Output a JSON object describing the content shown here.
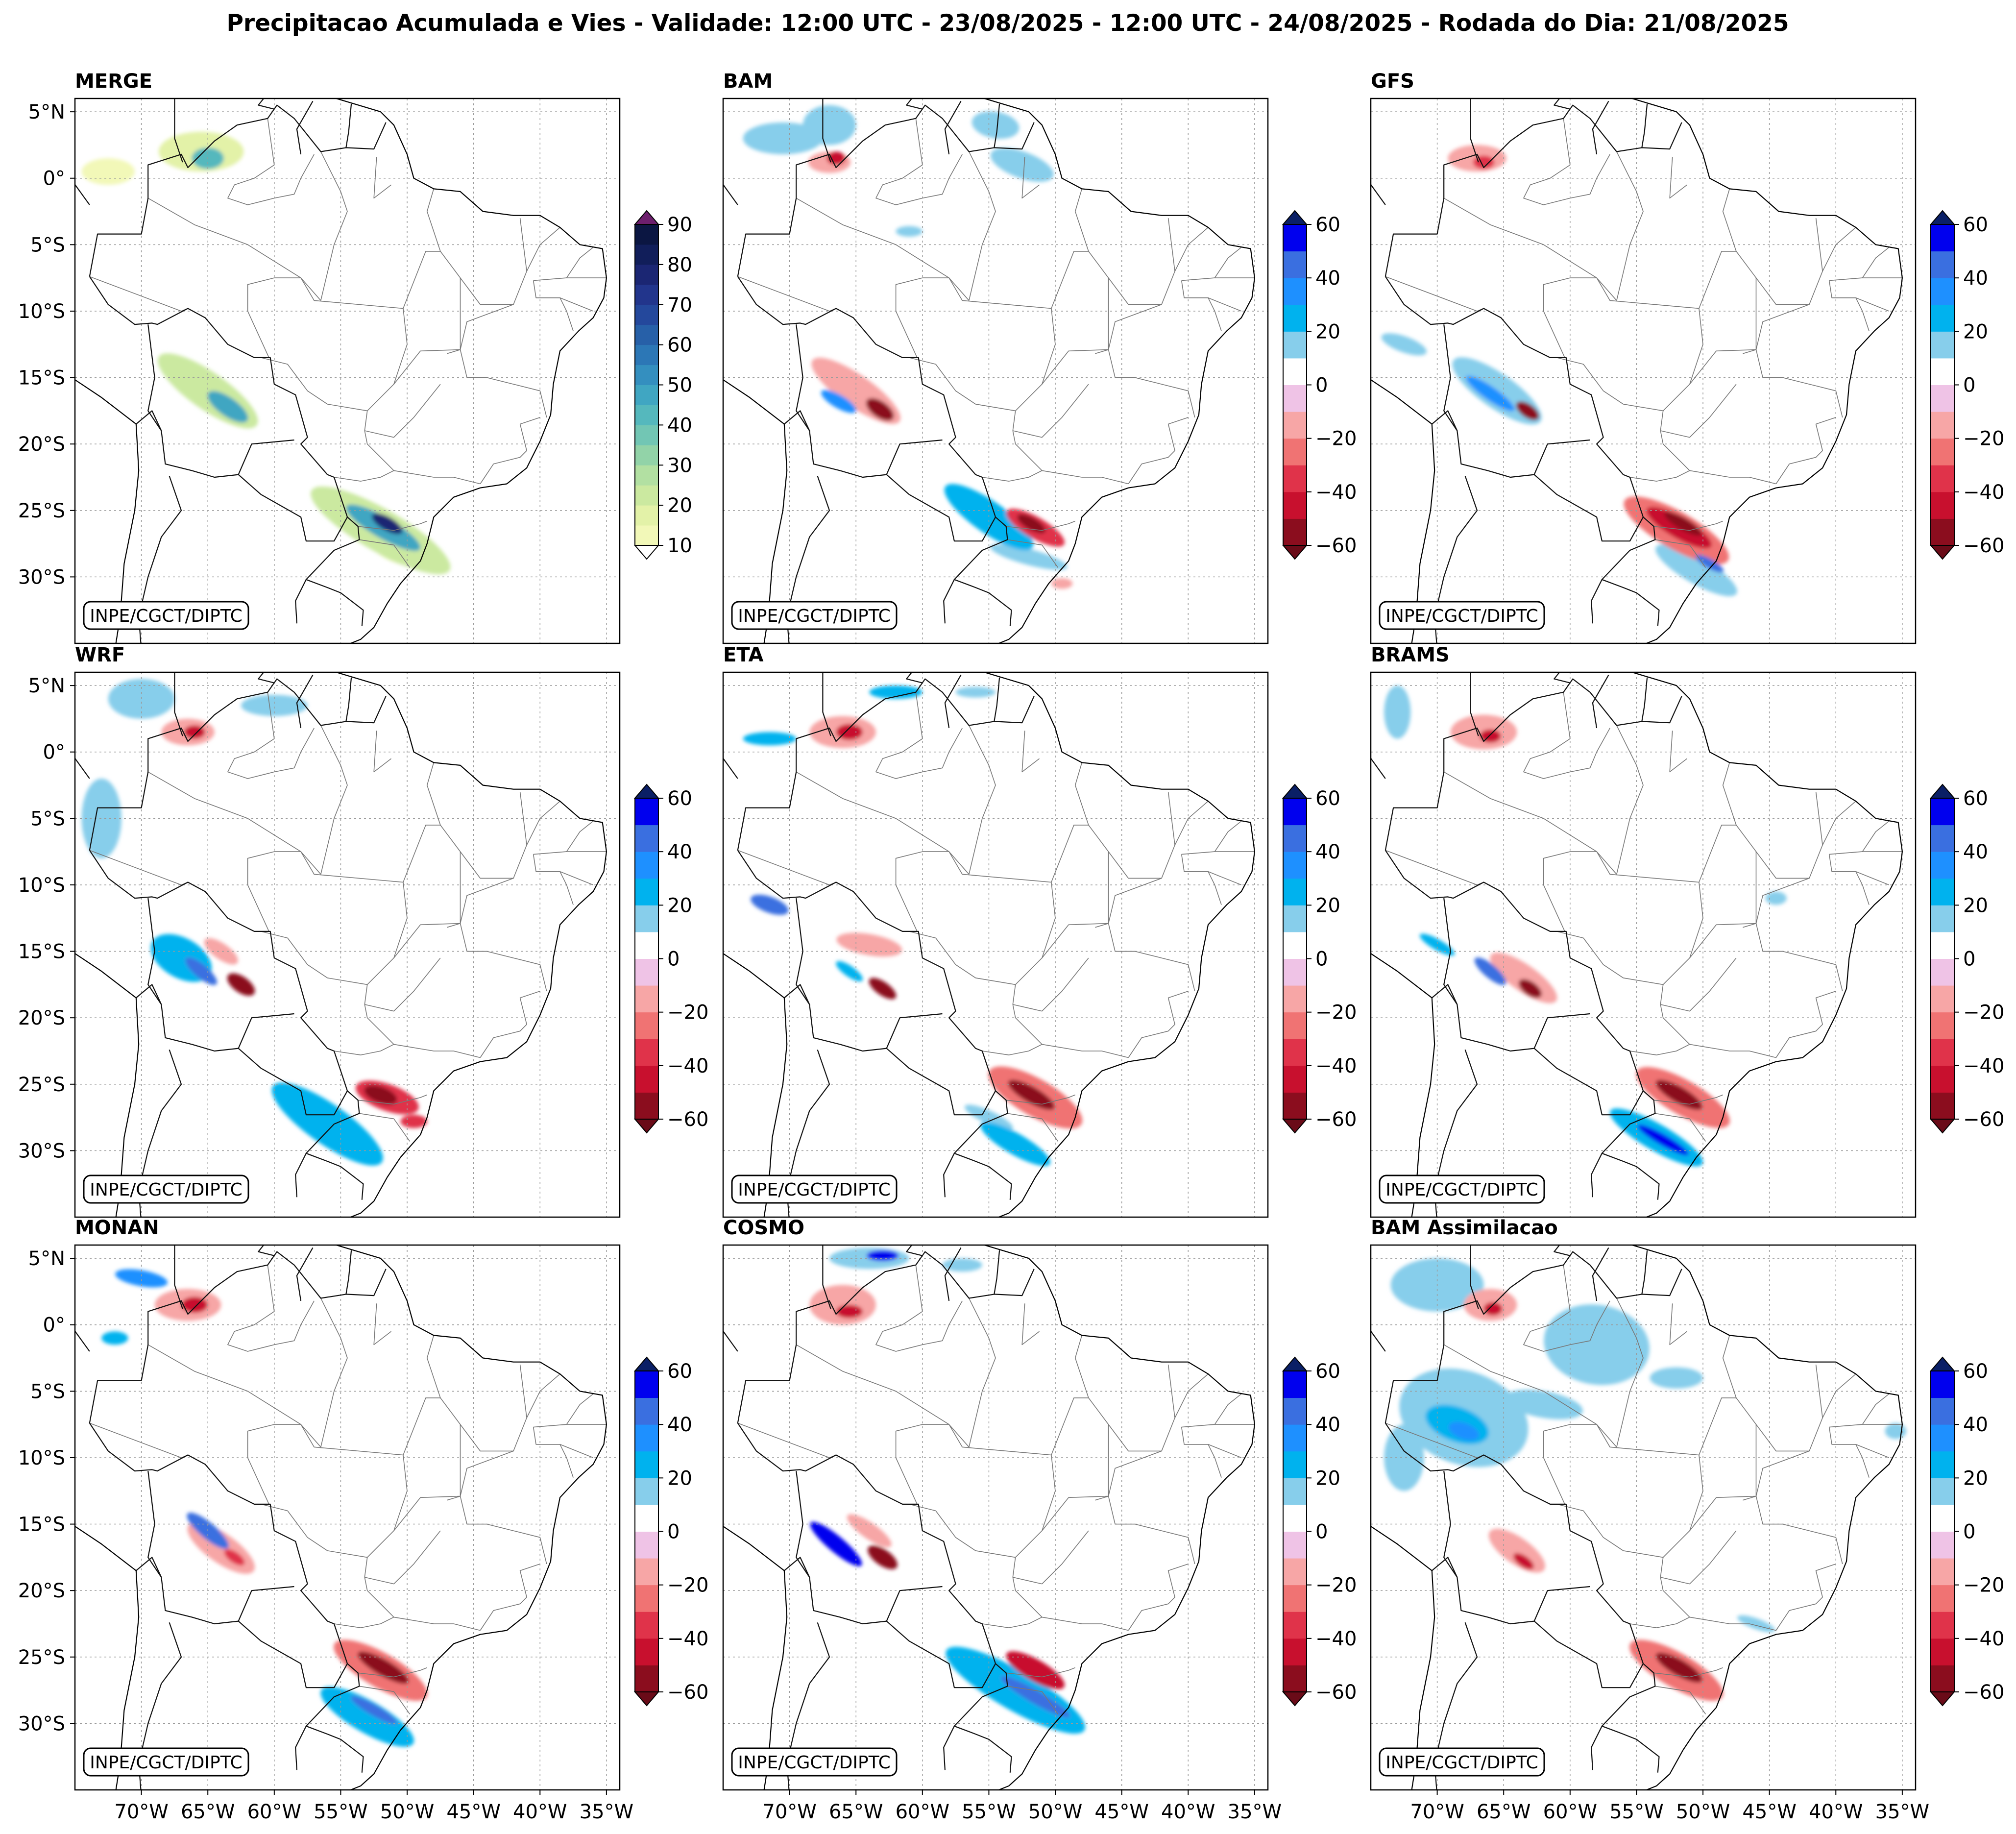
{
  "title": "Precipitacao Acumulada e Vies - Validade: 12:00 UTC - 23/08/2025 - 12:00 UTC - 24/08/2025 - Rodada do Dia: 21/08/2025",
  "credit": "INPE/CGCT/DIPTC",
  "lat_labels": [
    "5°N",
    "0°",
    "5°S",
    "10°S",
    "15°S",
    "20°S",
    "25°S",
    "30°S"
  ],
  "lon_labels": [
    "70°W",
    "65°W",
    "60°W",
    "55°W",
    "50°W",
    "45°W",
    "40°W",
    "35°W"
  ],
  "colorbars": {
    "precip": {
      "tick_labels": [
        "90",
        "80",
        "70",
        "60",
        "50",
        "40",
        "30",
        "20",
        "10"
      ],
      "levels": [
        10,
        15,
        20,
        25,
        30,
        35,
        40,
        45,
        50,
        55,
        60,
        65,
        70,
        75,
        80,
        85,
        90
      ],
      "colors": [
        "#f2f8b8",
        "#e3f2a8",
        "#cbe9a0",
        "#b2e0a2",
        "#92d3a8",
        "#72c6b4",
        "#55b8bd",
        "#40a6c2",
        "#348fbf",
        "#2c77b6",
        "#2760a8",
        "#24489c",
        "#22358c",
        "#1b2673",
        "#111e5a",
        "#0b1642"
      ],
      "over_color": "#6d1f6d",
      "under_color": "#ffffff"
    },
    "bias": {
      "tick_labels": [
        "60",
        "40",
        "20",
        "0",
        "-20",
        "-40",
        "-60"
      ],
      "levels": [
        -60,
        -50,
        -40,
        -30,
        -20,
        -10,
        0,
        10,
        20,
        30,
        40,
        50,
        60
      ],
      "colors": [
        "#8b0d1e",
        "#c8102e",
        "#e0334a",
        "#f07373",
        "#f7a6a6",
        "#efc3e6",
        "#ffffff",
        "#87ceeb",
        "#00b2ee",
        "#1e90ff",
        "#3a6fe0",
        "#0000ee"
      ],
      "over_color": "#0a1f66",
      "under_color": "#6a0b18"
    }
  },
  "panels": [
    {
      "name": "MERGE",
      "variable": "precip",
      "blobs": [
        {
          "lon": -65.5,
          "lat": 2.0,
          "a": 3.2,
          "b": 1.5,
          "rot": 0,
          "v": 18
        },
        {
          "lon": -65.0,
          "lat": 1.5,
          "a": 1.2,
          "b": 0.8,
          "rot": 0,
          "v": 42
        },
        {
          "lon": -72.5,
          "lat": 0.5,
          "a": 2.0,
          "b": 1.0,
          "rot": 0,
          "v": 13
        },
        {
          "lon": -65.0,
          "lat": -16.0,
          "a": 4.5,
          "b": 1.4,
          "rot": -35,
          "v": 20
        },
        {
          "lon": -63.5,
          "lat": -17.2,
          "a": 1.8,
          "b": 0.7,
          "rot": -35,
          "v": 48
        },
        {
          "lon": -52.0,
          "lat": -26.5,
          "a": 6.0,
          "b": 1.6,
          "rot": -30,
          "v": 22
        },
        {
          "lon": -51.8,
          "lat": -26.3,
          "a": 3.2,
          "b": 0.8,
          "rot": -30,
          "v": 45
        },
        {
          "lon": -51.5,
          "lat": -26.0,
          "a": 1.3,
          "b": 0.5,
          "rot": -30,
          "v": 78
        },
        {
          "lon": -50.5,
          "lat": -28.0,
          "a": 2.5,
          "b": 1.0,
          "rot": -20,
          "v": 15
        }
      ]
    },
    {
      "name": "BAM",
      "variable": "bias",
      "blobs": [
        {
          "lon": -70.5,
          "lat": 3.0,
          "a": 3.0,
          "b": 1.2,
          "rot": 0,
          "v": 12
        },
        {
          "lon": -67.0,
          "lat": 4.0,
          "a": 2.0,
          "b": 1.5,
          "rot": 0,
          "v": 12
        },
        {
          "lon": -67.0,
          "lat": 1.2,
          "a": 1.6,
          "b": 0.8,
          "rot": 0,
          "v": -18
        },
        {
          "lon": -66.5,
          "lat": 1.5,
          "a": 0.7,
          "b": 0.5,
          "rot": 0,
          "v": -42
        },
        {
          "lon": -54.5,
          "lat": 4.0,
          "a": 1.8,
          "b": 1.0,
          "rot": -10,
          "v": 12
        },
        {
          "lon": -52.5,
          "lat": 1.0,
          "a": 2.5,
          "b": 1.0,
          "rot": -20,
          "v": 12
        },
        {
          "lon": -61.0,
          "lat": -4.0,
          "a": 1.0,
          "b": 0.4,
          "rot": 0,
          "v": 12
        },
        {
          "lon": -65.0,
          "lat": -16.0,
          "a": 4.0,
          "b": 1.2,
          "rot": -35,
          "v": -15
        },
        {
          "lon": -63.2,
          "lat": -17.4,
          "a": 1.2,
          "b": 0.6,
          "rot": -35,
          "v": -55
        },
        {
          "lon": -66.3,
          "lat": -16.8,
          "a": 1.5,
          "b": 0.5,
          "rot": -30,
          "v": 38
        },
        {
          "lon": -55.0,
          "lat": -25.5,
          "a": 4.0,
          "b": 1.2,
          "rot": -35,
          "v": 22
        },
        {
          "lon": -51.5,
          "lat": -26.3,
          "a": 2.5,
          "b": 0.8,
          "rot": -30,
          "v": -35
        },
        {
          "lon": -51.8,
          "lat": -26.0,
          "a": 1.2,
          "b": 0.45,
          "rot": -30,
          "v": -58
        },
        {
          "lon": -52.0,
          "lat": -28.5,
          "a": 3.0,
          "b": 0.6,
          "rot": -15,
          "v": 12
        },
        {
          "lon": -49.5,
          "lat": -30.5,
          "a": 0.8,
          "b": 0.4,
          "rot": 0,
          "v": -18
        }
      ]
    },
    {
      "name": "GFS",
      "variable": "bias",
      "blobs": [
        {
          "lon": -67.0,
          "lat": 1.5,
          "a": 2.2,
          "b": 1.0,
          "rot": 0,
          "v": -15
        },
        {
          "lon": -66.5,
          "lat": 1.2,
          "a": 0.8,
          "b": 0.5,
          "rot": 0,
          "v": -40
        },
        {
          "lon": -72.5,
          "lat": -12.5,
          "a": 1.8,
          "b": 0.6,
          "rot": -20,
          "v": 12
        },
        {
          "lon": -65.5,
          "lat": -16.0,
          "a": 4.0,
          "b": 1.3,
          "rot": -35,
          "v": 15
        },
        {
          "lon": -66.0,
          "lat": -16.2,
          "a": 2.2,
          "b": 0.5,
          "rot": -35,
          "v": 38
        },
        {
          "lon": -63.2,
          "lat": -17.5,
          "a": 1.0,
          "b": 0.5,
          "rot": -35,
          "v": -55
        },
        {
          "lon": -52.0,
          "lat": -26.5,
          "a": 4.5,
          "b": 1.4,
          "rot": -30,
          "v": -22
        },
        {
          "lon": -51.8,
          "lat": -26.3,
          "a": 2.8,
          "b": 0.8,
          "rot": -30,
          "v": -48
        },
        {
          "lon": -51.5,
          "lat": -26.0,
          "a": 1.6,
          "b": 0.45,
          "rot": -30,
          "v": -58
        },
        {
          "lon": -50.5,
          "lat": -29.5,
          "a": 3.5,
          "b": 1.0,
          "rot": -30,
          "v": 12
        },
        {
          "lon": -49.5,
          "lat": -29.0,
          "a": 1.2,
          "b": 0.35,
          "rot": -30,
          "v": 40
        }
      ]
    },
    {
      "name": "WRF",
      "variable": "bias",
      "blobs": [
        {
          "lon": -66.5,
          "lat": 1.5,
          "a": 2.0,
          "b": 1.0,
          "rot": 0,
          "v": -18
        },
        {
          "lon": -66.0,
          "lat": 1.5,
          "a": 0.8,
          "b": 0.5,
          "rot": 0,
          "v": -45
        },
        {
          "lon": -70.0,
          "lat": 4.0,
          "a": 2.5,
          "b": 1.5,
          "rot": 0,
          "v": 12
        },
        {
          "lon": -60.0,
          "lat": 3.5,
          "a": 2.5,
          "b": 0.8,
          "rot": 0,
          "v": 12
        },
        {
          "lon": -73.0,
          "lat": -5.0,
          "a": 1.5,
          "b": 3.0,
          "rot": 0,
          "v": 12
        },
        {
          "lon": -67.0,
          "lat": -15.5,
          "a": 2.5,
          "b": 1.5,
          "rot": -30,
          "v": 25
        },
        {
          "lon": -65.5,
          "lat": -16.5,
          "a": 1.5,
          "b": 0.5,
          "rot": -40,
          "v": 42
        },
        {
          "lon": -62.5,
          "lat": -17.5,
          "a": 1.2,
          "b": 0.6,
          "rot": -35,
          "v": -55
        },
        {
          "lon": -64.0,
          "lat": -15.0,
          "a": 1.5,
          "b": 0.6,
          "rot": -35,
          "v": -15
        },
        {
          "lon": -56.0,
          "lat": -28.0,
          "a": 5.0,
          "b": 1.5,
          "rot": -35,
          "v": 22
        },
        {
          "lon": -51.5,
          "lat": -26.0,
          "a": 2.5,
          "b": 1.0,
          "rot": -20,
          "v": -40
        },
        {
          "lon": -52.0,
          "lat": -25.8,
          "a": 1.3,
          "b": 0.6,
          "rot": -20,
          "v": -58
        },
        {
          "lon": -49.5,
          "lat": -27.8,
          "a": 1.0,
          "b": 0.5,
          "rot": 0,
          "v": -35
        }
      ]
    },
    {
      "name": "ETA",
      "variable": "bias",
      "blobs": [
        {
          "lon": -66.0,
          "lat": 1.5,
          "a": 2.5,
          "b": 1.2,
          "rot": 0,
          "v": -18
        },
        {
          "lon": -65.5,
          "lat": 1.5,
          "a": 1.0,
          "b": 0.6,
          "rot": 0,
          "v": -45
        },
        {
          "lon": -71.5,
          "lat": 1.0,
          "a": 2.0,
          "b": 0.5,
          "rot": 0,
          "v": 25
        },
        {
          "lon": -62.0,
          "lat": 4.5,
          "a": 2.0,
          "b": 0.5,
          "rot": 0,
          "v": 25
        },
        {
          "lon": -56.0,
          "lat": 4.5,
          "a": 1.5,
          "b": 0.4,
          "rot": 0,
          "v": 12
        },
        {
          "lon": -71.5,
          "lat": -11.5,
          "a": 1.5,
          "b": 0.6,
          "rot": -20,
          "v": 45
        },
        {
          "lon": -64.0,
          "lat": -14.5,
          "a": 2.5,
          "b": 0.8,
          "rot": -10,
          "v": -15
        },
        {
          "lon": -63.0,
          "lat": -17.8,
          "a": 1.2,
          "b": 0.5,
          "rot": -35,
          "v": -55
        },
        {
          "lon": -65.5,
          "lat": -16.5,
          "a": 1.2,
          "b": 0.4,
          "rot": -35,
          "v": 25
        },
        {
          "lon": -51.5,
          "lat": -26.0,
          "a": 4.0,
          "b": 1.4,
          "rot": -30,
          "v": -25
        },
        {
          "lon": -51.8,
          "lat": -25.8,
          "a": 2.0,
          "b": 0.6,
          "rot": -30,
          "v": -58
        },
        {
          "lon": -53.0,
          "lat": -29.5,
          "a": 3.0,
          "b": 0.8,
          "rot": -30,
          "v": 22
        },
        {
          "lon": -55.0,
          "lat": -27.5,
          "a": 2.0,
          "b": 0.5,
          "rot": -25,
          "v": 12
        }
      ]
    },
    {
      "name": "BRAMS",
      "variable": "bias",
      "blobs": [
        {
          "lon": -66.5,
          "lat": 1.5,
          "a": 2.5,
          "b": 1.3,
          "rot": 0,
          "v": -15
        },
        {
          "lon": -66.0,
          "lat": 1.2,
          "a": 0.8,
          "b": 0.5,
          "rot": 0,
          "v": -45
        },
        {
          "lon": -73.0,
          "lat": 3.0,
          "a": 1.0,
          "b": 2.0,
          "rot": 0,
          "v": 12
        },
        {
          "lon": -70.0,
          "lat": -14.5,
          "a": 1.5,
          "b": 0.4,
          "rot": -30,
          "v": 25
        },
        {
          "lon": -66.0,
          "lat": -16.5,
          "a": 1.5,
          "b": 0.5,
          "rot": -40,
          "v": 40
        },
        {
          "lon": -63.5,
          "lat": -17.0,
          "a": 3.0,
          "b": 1.0,
          "rot": -35,
          "v": -18
        },
        {
          "lon": -63.0,
          "lat": -17.8,
          "a": 1.0,
          "b": 0.5,
          "rot": -35,
          "v": -55
        },
        {
          "lon": -51.5,
          "lat": -26.0,
          "a": 4.0,
          "b": 1.3,
          "rot": -30,
          "v": -25
        },
        {
          "lon": -51.8,
          "lat": -25.8,
          "a": 2.0,
          "b": 0.6,
          "rot": -30,
          "v": -58
        },
        {
          "lon": -53.5,
          "lat": -29.0,
          "a": 4.0,
          "b": 1.0,
          "rot": -30,
          "v": 25
        },
        {
          "lon": -53.0,
          "lat": -29.2,
          "a": 2.2,
          "b": 0.4,
          "rot": -30,
          "v": 58
        },
        {
          "lon": -44.5,
          "lat": -11.0,
          "a": 0.8,
          "b": 0.5,
          "rot": 0,
          "v": 12
        }
      ]
    },
    {
      "name": "MONAN",
      "variable": "bias",
      "blobs": [
        {
          "lon": -66.5,
          "lat": 1.5,
          "a": 2.5,
          "b": 1.2,
          "rot": 0,
          "v": -18
        },
        {
          "lon": -66.0,
          "lat": 1.5,
          "a": 1.0,
          "b": 0.6,
          "rot": 0,
          "v": -48
        },
        {
          "lon": -70.0,
          "lat": 3.5,
          "a": 2.0,
          "b": 0.6,
          "rot": -10,
          "v": 30
        },
        {
          "lon": -72.0,
          "lat": -1.0,
          "a": 1.0,
          "b": 0.5,
          "rot": 0,
          "v": 25
        },
        {
          "lon": -65.0,
          "lat": -15.5,
          "a": 2.0,
          "b": 0.6,
          "rot": -40,
          "v": 45
        },
        {
          "lon": -64.0,
          "lat": -16.8,
          "a": 3.0,
          "b": 1.1,
          "rot": -35,
          "v": -15
        },
        {
          "lon": -63.0,
          "lat": -17.5,
          "a": 0.9,
          "b": 0.4,
          "rot": -35,
          "v": -40
        },
        {
          "lon": -52.0,
          "lat": -26.0,
          "a": 4.0,
          "b": 1.3,
          "rot": -30,
          "v": -25
        },
        {
          "lon": -51.8,
          "lat": -25.8,
          "a": 2.2,
          "b": 0.6,
          "rot": -30,
          "v": -58
        },
        {
          "lon": -53.0,
          "lat": -29.5,
          "a": 4.0,
          "b": 1.2,
          "rot": -30,
          "v": 22
        },
        {
          "lon": -52.5,
          "lat": -29.0,
          "a": 2.0,
          "b": 0.4,
          "rot": -30,
          "v": 40
        }
      ]
    },
    {
      "name": "COSMO",
      "variable": "bias",
      "blobs": [
        {
          "lon": -66.0,
          "lat": 1.5,
          "a": 2.5,
          "b": 1.5,
          "rot": 0,
          "v": -18
        },
        {
          "lon": -65.5,
          "lat": 1.0,
          "a": 1.0,
          "b": 0.5,
          "rot": 0,
          "v": -45
        },
        {
          "lon": -64.0,
          "lat": 5.0,
          "a": 3.0,
          "b": 0.8,
          "rot": 0,
          "v": 15
        },
        {
          "lon": -63.0,
          "lat": 5.2,
          "a": 1.2,
          "b": 0.4,
          "rot": 0,
          "v": 50
        },
        {
          "lon": -57.0,
          "lat": 4.5,
          "a": 1.5,
          "b": 0.5,
          "rot": 0,
          "v": 12
        },
        {
          "lon": -66.5,
          "lat": -16.5,
          "a": 2.5,
          "b": 0.6,
          "rot": -40,
          "v": 50
        },
        {
          "lon": -63.0,
          "lat": -17.5,
          "a": 1.3,
          "b": 0.6,
          "rot": -35,
          "v": -55
        },
        {
          "lon": -64.0,
          "lat": -15.5,
          "a": 2.0,
          "b": 0.6,
          "rot": -35,
          "v": -15
        },
        {
          "lon": -53.0,
          "lat": -27.5,
          "a": 6.0,
          "b": 1.5,
          "rot": -30,
          "v": 22
        },
        {
          "lon": -51.5,
          "lat": -28.0,
          "a": 3.0,
          "b": 0.5,
          "rot": -30,
          "v": 45
        },
        {
          "lon": -51.5,
          "lat": -26.0,
          "a": 2.5,
          "b": 0.8,
          "rot": -30,
          "v": -50
        }
      ]
    },
    {
      "name": "BAM Assimilacao",
      "variable": "bias",
      "blobs": [
        {
          "lon": -66.0,
          "lat": 1.5,
          "a": 2.0,
          "b": 1.2,
          "rot": 0,
          "v": -18
        },
        {
          "lon": -65.8,
          "lat": 1.2,
          "a": 0.7,
          "b": 0.5,
          "rot": 0,
          "v": -45
        },
        {
          "lon": -70.0,
          "lat": 3.0,
          "a": 3.5,
          "b": 2.0,
          "rot": 0,
          "v": 12
        },
        {
          "lon": -58.0,
          "lat": -1.5,
          "a": 4.0,
          "b": 3.0,
          "rot": -10,
          "v": 12
        },
        {
          "lon": -68.0,
          "lat": -7.0,
          "a": 5.0,
          "b": 3.5,
          "rot": -20,
          "v": 14
        },
        {
          "lon": -68.5,
          "lat": -7.5,
          "a": 2.5,
          "b": 1.3,
          "rot": -20,
          "v": 25
        },
        {
          "lon": -68.0,
          "lat": -8.0,
          "a": 1.2,
          "b": 0.6,
          "rot": -20,
          "v": 35
        },
        {
          "lon": -72.5,
          "lat": -10.0,
          "a": 1.5,
          "b": 2.5,
          "rot": 0,
          "v": 12
        },
        {
          "lon": -62.0,
          "lat": -6.0,
          "a": 3.0,
          "b": 1.0,
          "rot": -10,
          "v": 12
        },
        {
          "lon": -52.0,
          "lat": -4.0,
          "a": 2.0,
          "b": 0.8,
          "rot": 0,
          "v": 12
        },
        {
          "lon": -64.0,
          "lat": -17.0,
          "a": 2.5,
          "b": 1.0,
          "rot": -35,
          "v": -18
        },
        {
          "lon": -63.5,
          "lat": -17.8,
          "a": 0.9,
          "b": 0.4,
          "rot": -35,
          "v": -48
        },
        {
          "lon": -52.0,
          "lat": -26.0,
          "a": 4.0,
          "b": 1.3,
          "rot": -30,
          "v": -25
        },
        {
          "lon": -51.8,
          "lat": -25.8,
          "a": 2.0,
          "b": 0.6,
          "rot": -30,
          "v": -58
        },
        {
          "lon": -46.0,
          "lat": -22.5,
          "a": 1.5,
          "b": 0.4,
          "rot": -20,
          "v": 12
        },
        {
          "lon": -35.5,
          "lat": -8.0,
          "a": 0.8,
          "b": 0.6,
          "rot": 0,
          "v": 12
        }
      ]
    }
  ]
}
